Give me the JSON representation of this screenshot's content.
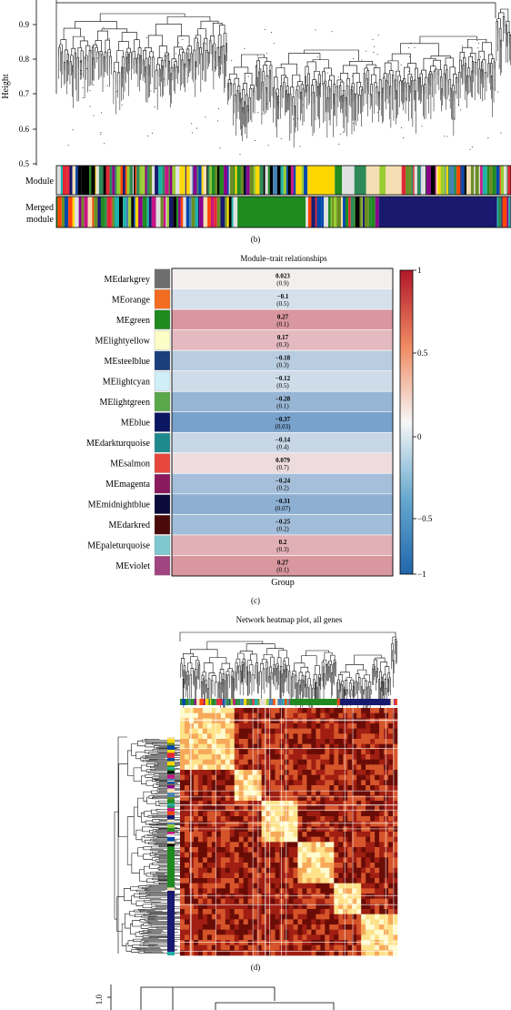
{
  "panel_b": {
    "ylabel": "Height",
    "yticks": [
      "0.9",
      "0.8",
      "0.7",
      "0.6",
      "0.5"
    ],
    "row_module": "Module",
    "row_merged_line1": "Merged",
    "row_merged_line2": "module",
    "caption": "(b)"
  },
  "panel_c": {
    "title": "Module–trait relationships",
    "xlabel": "Group",
    "caption": "(c)",
    "legend_ticks": [
      "1",
      "0.5",
      "0",
      "−0.5",
      "−1"
    ]
  },
  "panel_d": {
    "title": "Network heatmap plot, all genes",
    "caption": "(d)"
  },
  "panel_e": {
    "ytick": "1.0"
  },
  "colors": {
    "positive": "#b2182b",
    "neutral": "#f7f7f7",
    "negative": "#2166ac",
    "module_palette": [
      "#2e8b57",
      "#191970",
      "#e0e0e0",
      "#ff4500",
      "#8b008b",
      "#20b2aa",
      "#ffd700",
      "#e32636",
      "#6b8e23",
      "#0047ab",
      "#c71585",
      "#228b22",
      "#000000",
      "#f5deb3",
      "#4682b4",
      "#9acd32"
    ],
    "heatmap_palette": [
      "#fffbd0",
      "#fde28a",
      "#f7a95a",
      "#d6542a",
      "#a01e12",
      "#6a0c06"
    ]
  },
  "chart_data": [
    {
      "type": "heatmap",
      "title": "Module–trait relationships",
      "xlabel": "Group",
      "categories": [
        "MEdarkgrey",
        "MEorange",
        "MEgreen",
        "MElightyellow",
        "MEsteelblue",
        "MElightcyan",
        "MElightgreen",
        "MEblue",
        "MEdarkturquoise",
        "MEsalmon",
        "MEmagenta",
        "MEmidnightblue",
        "MEdarkred",
        "MEpaleturquoise",
        "MEviolet"
      ],
      "module_colors": [
        "#6e6e6e",
        "#f26d21",
        "#1f8a1f",
        "#fdfdc8",
        "#1a3f7a",
        "#cfeef7",
        "#5aa84a",
        "#0b1761",
        "#1f8a8e",
        "#e8473c",
        "#8a1a5c",
        "#0a0a3a",
        "#4a0a0a",
        "#7fc8d0",
        "#a0457f"
      ],
      "correlation": [
        "0.023",
        "−0.1",
        "0.27",
        "0.17",
        "−0.18",
        "−0.12",
        "−0.28",
        "−0.37",
        "−0.14",
        "0.079",
        "−0.24",
        "−0.31",
        "−0.25",
        "0.2",
        "0.27"
      ],
      "correlation_values": [
        0.023,
        -0.1,
        0.27,
        0.17,
        -0.18,
        -0.12,
        -0.28,
        -0.37,
        -0.14,
        0.079,
        -0.24,
        -0.31,
        -0.25,
        0.2,
        0.27
      ],
      "pvalue": [
        "(0.9)",
        "(0.5)",
        "(0.1)",
        "(0.3)",
        "(0.3)",
        "(0.5)",
        "(0.1)",
        "(0.03)",
        "(0.4)",
        "(0.7)",
        "(0.2)",
        "(0.07)",
        "(0.2)",
        "(0.3)",
        "(0.1)"
      ],
      "colorscale_range": [
        -1,
        1
      ]
    },
    {
      "type": "heatmap",
      "title": "Network heatmap plot, all genes"
    }
  ]
}
